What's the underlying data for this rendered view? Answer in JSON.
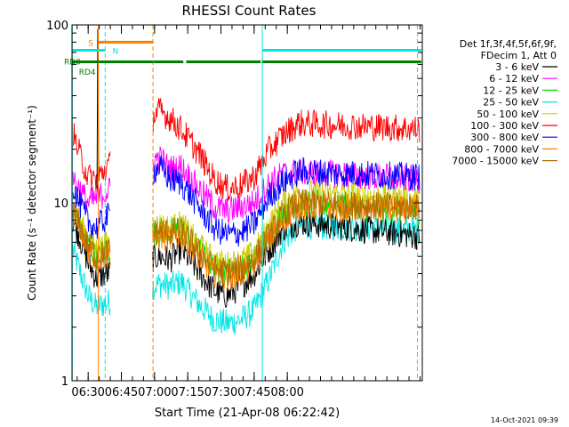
{
  "chart_data": {
    "type": "line",
    "title": "RHESSI Count Rates",
    "xlabel": "Start Time (21-Apr-08 06:22:42)",
    "ylabel": "Count Rate (s⁻¹ detector segment⁻¹)",
    "y_scale": "log",
    "ylim": [
      1,
      100
    ],
    "y_ticks": [
      1,
      10,
      100
    ],
    "y_tick_labels": [
      "1",
      "10",
      "100"
    ],
    "x_unit": "minutes",
    "xlim": [
      22.7,
      181.0
    ],
    "x_ticks": [
      30,
      45,
      60,
      75,
      90,
      105,
      120
    ],
    "x_tick_labels": [
      "06:30",
      "06:45",
      "07:00",
      "07:15",
      "07:30",
      "07:45",
      "08:00"
    ],
    "x_minor_step": 5,
    "legend": {
      "position": "right",
      "header": [
        "Det 1f,3f,4f,5f,6f,9f,",
        "FDecim 1, Att 0"
      ]
    },
    "footer": "14-Oct-2021 09:39",
    "series": [
      {
        "name": "3 - 6 keV",
        "color": "#000000",
        "values": [
          8.0,
          6.5,
          4.6,
          3.8,
          5.0,
          4.8,
          5.5,
          4.1,
          3.2,
          3.0,
          3.4,
          4.0,
          5.5,
          7.2,
          7.8,
          6.5
        ]
      },
      {
        "name": "6 - 12 keV",
        "color": "#ff00ff",
        "values": [
          14.0,
          12.0,
          10.0,
          10.5,
          18.0,
          15.5,
          16.0,
          12.0,
          9.5,
          9.0,
          9.5,
          10.0,
          13.0,
          14.5,
          15.0,
          13.5
        ]
      },
      {
        "name": "12 - 25 keV",
        "color": "#00dd00",
        "values": [
          9.0,
          7.5,
          5.8,
          5.0,
          7.0,
          6.8,
          7.2,
          5.4,
          4.3,
          4.1,
          4.3,
          4.8,
          6.8,
          9.0,
          10.0,
          9.0
        ]
      },
      {
        "name": "25 - 50 keV",
        "color": "#00e6e6",
        "values": [
          5.5,
          4.2,
          3.0,
          2.6,
          3.5,
          3.4,
          3.6,
          2.7,
          2.2,
          2.1,
          2.2,
          2.5,
          3.8,
          6.0,
          7.5,
          7.0
        ]
      },
      {
        "name": "50 - 100 keV",
        "color": "#cccc00",
        "values": [
          9.5,
          8.0,
          6.2,
          5.5,
          7.5,
          7.2,
          7.6,
          5.8,
          4.7,
          4.5,
          4.7,
          5.2,
          7.5,
          10.0,
          11.5,
          10.5
        ]
      },
      {
        "name": "100 - 300 keV",
        "color": "#ff0000",
        "values": [
          25.0,
          19.0,
          14.0,
          13.5,
          33.0,
          30.0,
          26.0,
          19.0,
          13.5,
          12.0,
          12.5,
          14.0,
          20.0,
          24.0,
          28.0,
          26.0
        ]
      },
      {
        "name": "300 - 800 keV",
        "color": "#0000ff",
        "values": [
          12.5,
          10.0,
          7.8,
          7.2,
          16.0,
          13.5,
          13.0,
          9.5,
          7.2,
          6.6,
          6.8,
          7.6,
          11.0,
          13.0,
          15.0,
          14.0
        ]
      },
      {
        "name": "800 - 7000 keV",
        "color": "#ff8000",
        "values": [
          8.5,
          7.0,
          5.4,
          4.8,
          6.5,
          6.2,
          6.6,
          5.0,
          4.0,
          3.8,
          4.0,
          4.5,
          6.2,
          8.0,
          9.5,
          9.0
        ]
      },
      {
        "name": "7000 - 15000 keV",
        "color": "#b36b00",
        "values": [
          9.0,
          7.5,
          5.8,
          5.0,
          7.0,
          6.8,
          7.0,
          5.3,
          4.3,
          4.1,
          4.3,
          4.8,
          6.6,
          8.5,
          10.0,
          9.4
        ]
      }
    ],
    "x": [
      23,
      26,
      30,
      33.5,
      62,
      67,
      72,
      80,
      87,
      93,
      99,
      105,
      112,
      118,
      125,
      180
    ],
    "gaps": [
      [
        40,
        59
      ]
    ],
    "vertical_markers": [
      {
        "x": 22.8,
        "color": "#00e6e6",
        "style": "solid"
      },
      {
        "x": 34.6,
        "color": "#ff8000",
        "style": "solid"
      },
      {
        "x": 37.7,
        "color": "#00e6e6",
        "style": "dashed"
      },
      {
        "x": 59.3,
        "color": "#ff8000",
        "style": "dashed"
      },
      {
        "x": 108.7,
        "color": "#00e6e6",
        "style": "solid"
      },
      {
        "x": 178.8,
        "color": "#00e6e6",
        "style": "dashed"
      }
    ],
    "flag_bars": [
      {
        "label": "S",
        "color": "#ff8000",
        "y": 80,
        "segments": [
          [
            34.6,
            59.3
          ]
        ]
      },
      {
        "label": "N",
        "color": "#00e6e6",
        "y": 72,
        "segments": [
          [
            22.8,
            37.7
          ],
          [
            108.7,
            180.5
          ]
        ]
      },
      {
        "label": "RD0",
        "color": "#008000",
        "y": 62,
        "segments": [
          [
            22.8,
            59.3
          ],
          [
            59.5,
            73.0
          ],
          [
            74.3,
            108.0
          ],
          [
            108.7,
            180.5
          ]
        ]
      },
      {
        "label": "RD4",
        "color": "#008000",
        "y": 55,
        "segments": []
      }
    ]
  }
}
